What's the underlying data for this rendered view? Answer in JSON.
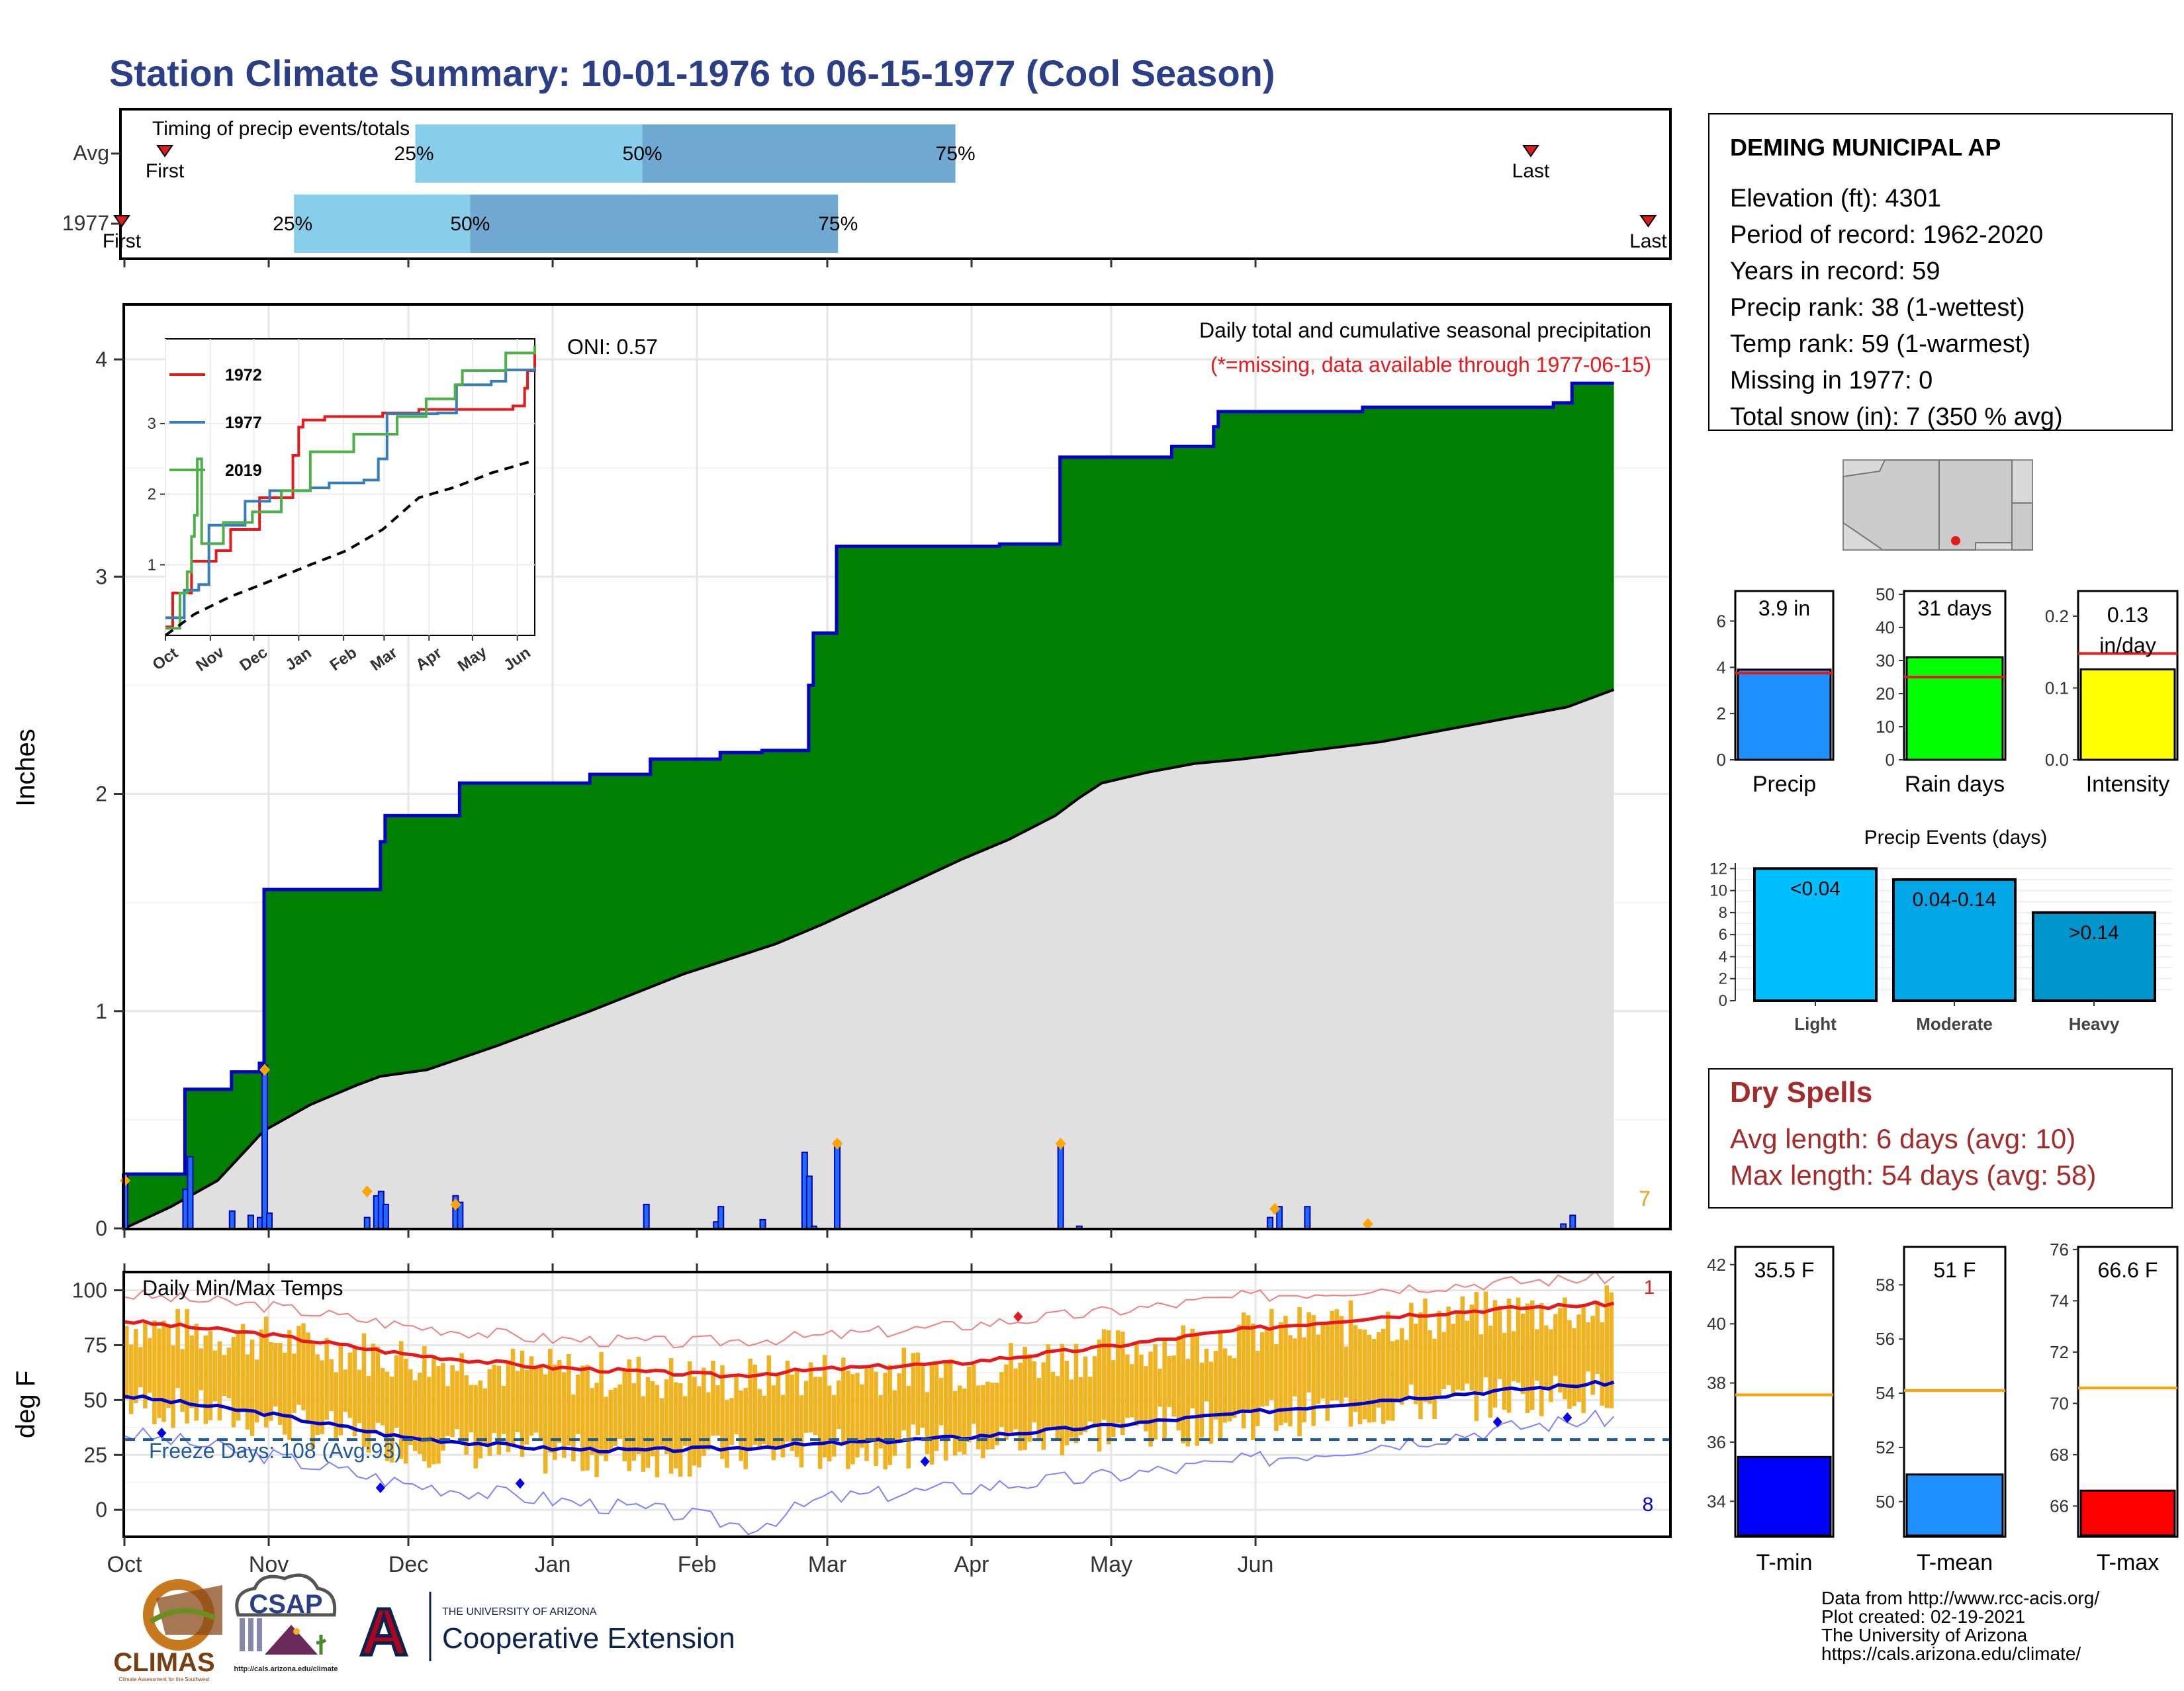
{
  "title": "Station Climate Summary: 10-01-1976 to 06-15-1977 (Cool Season)",
  "colors": {
    "title": "#2a3f88",
    "green": "#008000",
    "blue_line": "#0000cc",
    "gray_fill": "#e0e0e0",
    "light_blue": "#87ceeb",
    "steel_blue": "#6fa8d0",
    "orange": "#f0b21e",
    "red": "#e41a1c",
    "dry_red": "#a52a2a",
    "freeze_blue": "#1f5a99"
  },
  "timing_panel": {
    "title": "Timing of precip events/totals",
    "rows": [
      {
        "label": "Avg",
        "first": "First",
        "last": "Last",
        "p25": "25%",
        "p50": "50%",
        "p75": "75%",
        "first_day": 11,
        "p25_day": 75,
        "p50_day": 133,
        "p75_day": 213,
        "last_day": 360
      },
      {
        "label": "1977",
        "first": "First",
        "last": "Last",
        "p25": "25%",
        "p50": "50%",
        "p75": "75%",
        "first_day": 0,
        "p25_day": 44,
        "p50_day": 89,
        "p75_day": 183,
        "last_day": 390
      }
    ]
  },
  "main_panel": {
    "ylabel": "Inches",
    "legend_text": "Daily total and cumulative seasonal precipitation",
    "missing_note": "(*=missing, data available through 1977-06-15)",
    "oni": "ONI: 0.57",
    "snow_count": "7"
  },
  "inset": {
    "legend": [
      {
        "name": "1972",
        "color": "#e41a1c"
      },
      {
        "name": "1977",
        "color": "#377eb8"
      },
      {
        "name": "2019",
        "color": "#4daf4a"
      }
    ],
    "months": [
      "Oct",
      "Nov",
      "Dec",
      "Jan",
      "Feb",
      "Mar",
      "Apr",
      "May",
      "Jun"
    ]
  },
  "temp_panel": {
    "title": "Daily Min/Max Temps",
    "ylabel": "deg F",
    "freeze_text": "Freeze Days: 108 (Avg:93)",
    "count_max": "1",
    "count_min": "8"
  },
  "months": [
    "Oct",
    "Nov",
    "Dec",
    "Jan",
    "Feb",
    "Mar",
    "Apr",
    "May",
    "Jun"
  ],
  "station": {
    "name": "DEMING MUNICIPAL AP",
    "lines": [
      "Elevation (ft): 4301",
      "Period of record: 1962-2020",
      "Years in record: 59",
      "Precip rank: 38 (1-wettest)",
      "Temp rank: 59 (1-warmest)",
      "Missing in 1977: 0",
      "Total snow (in): 7 (350 % avg)"
    ]
  },
  "mini_charts": [
    {
      "label": "Precip",
      "value_text": "3.9 in",
      "value": 3.9,
      "avg": 3.75,
      "ymax": 7.3,
      "ticks": [
        0,
        2,
        4,
        6
      ],
      "color": "#1e90ff"
    },
    {
      "label": "Rain days",
      "value_text": "31 days",
      "value": 31,
      "avg": 25,
      "ymax": 51,
      "ticks": [
        0,
        10,
        20,
        30,
        40,
        50
      ],
      "color": "#00ff00"
    },
    {
      "label": "Intensity",
      "value_text": "0.13 in/day",
      "value": 0.126,
      "avg": 0.148,
      "ymax": 0.235,
      "ticks": [
        0.0,
        0.1,
        0.2
      ],
      "color": "#ffff00"
    }
  ],
  "events": {
    "title": "Precip Events (days)",
    "ymax": 12.5,
    "ticks": [
      0,
      2,
      4,
      6,
      8,
      10,
      12
    ],
    "bars": [
      {
        "label": "Light",
        "value_text": "<0.04",
        "value": 12,
        "color": "#00bfff"
      },
      {
        "label": "Moderate",
        "value_text": "0.04-0.14",
        "value": 11,
        "color": "#00a6e6"
      },
      {
        "label": "Heavy",
        "value_text": ">0.14",
        "value": 8,
        "color": "#0096cc"
      }
    ]
  },
  "dry_spells": {
    "title": "Dry Spells",
    "avg_line": "Avg length: 6 days (avg: 10)",
    "max_line": "Max length: 54 days (avg: 58)"
  },
  "temp_minis": [
    {
      "label": "T-min",
      "value_text": "35.5 F",
      "value": 35.5,
      "avg": 37.6,
      "ymin": 32.8,
      "ymax": 42.6,
      "ticks": [
        34,
        36,
        38,
        40,
        42
      ],
      "color": "#0000ff"
    },
    {
      "label": "T-mean",
      "value_text": "51 F",
      "value": 51,
      "avg": 54.1,
      "ymin": 48.7,
      "ymax": 59.4,
      "ticks": [
        50,
        52,
        54,
        56,
        58
      ],
      "color": "#1e90ff"
    },
    {
      "label": "T-max",
      "value_text": "66.6 F",
      "value": 66.6,
      "avg": 70.6,
      "ymin": 64.8,
      "ymax": 76.1,
      "ticks": [
        66,
        68,
        70,
        72,
        74,
        76
      ],
      "color": "#ff0000"
    }
  ],
  "footer": {
    "lines": [
      "Data from http://www.rcc-acis.org/",
      "Plot created: 02-19-2021",
      "The University of Arizona",
      "https://cals.arizona.edu/climate/"
    ],
    "logos": {
      "climas": "CLIMAS",
      "climas_sub": "Climate Assessment for the Southwest",
      "csap": "CSAP",
      "csap_url": "http://cals.arizona.edu/climate",
      "ua_small": "THE UNIVERSITY OF ARIZONA",
      "ua_big": "Cooperative Extension"
    }
  },
  "chart_data": [
    {
      "type": "area",
      "title": "Daily total and cumulative seasonal precipitation",
      "ylabel": "Inches",
      "x_unit": "days since Oct 1",
      "ylim": [
        0,
        4.25
      ],
      "months": [
        "Oct",
        "Nov",
        "Dec",
        "Jan",
        "Feb",
        "Mar",
        "Apr",
        "May",
        "Jun"
      ],
      "series": [
        {
          "name": "1977 cumulative",
          "points": [
            [
              0,
              0.25
            ],
            [
              12,
              0.25
            ],
            [
              13,
              0.64
            ],
            [
              22,
              0.64
            ],
            [
              23,
              0.72
            ],
            [
              28,
              0.72
            ],
            [
              29,
              0.76
            ],
            [
              30,
              1.56
            ],
            [
              54,
              1.56
            ],
            [
              55,
              1.78
            ],
            [
              56,
              1.9
            ],
            [
              71,
              1.9
            ],
            [
              72,
              2.05
            ],
            [
              99,
              2.05
            ],
            [
              100,
              2.09
            ],
            [
              112,
              2.09
            ],
            [
              113,
              2.16
            ],
            [
              127,
              2.16
            ],
            [
              128,
              2.19
            ],
            [
              136,
              2.19
            ],
            [
              137,
              2.2
            ],
            [
              146,
              2.2
            ],
            [
              147,
              2.5
            ],
            [
              148,
              2.74
            ],
            [
              152,
              2.74
            ],
            [
              153,
              3.14
            ],
            [
              187,
              3.14
            ],
            [
              188,
              3.15
            ],
            [
              200,
              3.15
            ],
            [
              201,
              3.55
            ],
            [
              224,
              3.55
            ],
            [
              225,
              3.6
            ],
            [
              233,
              3.6
            ],
            [
              234,
              3.69
            ],
            [
              235,
              3.76
            ],
            [
              265,
              3.76
            ],
            [
              266,
              3.78
            ],
            [
              306,
              3.78
            ],
            [
              307,
              3.8
            ],
            [
              310,
              3.8
            ],
            [
              311,
              3.89
            ],
            [
              320,
              3.89
            ]
          ]
        },
        {
          "name": "Average cumulative",
          "points": [
            [
              0,
              0
            ],
            [
              10,
              0.1
            ],
            [
              20,
              0.22
            ],
            [
              30,
              0.45
            ],
            [
              40,
              0.57
            ],
            [
              50,
              0.66
            ],
            [
              55,
              0.7
            ],
            [
              65,
              0.73
            ],
            [
              80,
              0.84
            ],
            [
              100,
              1.0
            ],
            [
              120,
              1.17
            ],
            [
              140,
              1.31
            ],
            [
              150,
              1.4
            ],
            [
              160,
              1.5
            ],
            [
              170,
              1.6
            ],
            [
              180,
              1.7
            ],
            [
              190,
              1.79
            ],
            [
              200,
              1.9
            ],
            [
              205,
              1.98
            ],
            [
              210,
              2.05
            ],
            [
              220,
              2.1
            ],
            [
              230,
              2.14
            ],
            [
              240,
              2.16
            ],
            [
              255,
              2.2
            ],
            [
              270,
              2.24
            ],
            [
              285,
              2.3
            ],
            [
              300,
              2.36
            ],
            [
              310,
              2.4
            ],
            [
              320,
              2.48
            ]
          ]
        }
      ],
      "daily_bars": [
        [
          0,
          0.25
        ],
        [
          13,
          0.18
        ],
        [
          14,
          0.33
        ],
        [
          23,
          0.08
        ],
        [
          27,
          0.06
        ],
        [
          29,
          0.05
        ],
        [
          30,
          0.75
        ],
        [
          31,
          0.07
        ],
        [
          52,
          0.05
        ],
        [
          54,
          0.15
        ],
        [
          55,
          0.17
        ],
        [
          56,
          0.11
        ],
        [
          71,
          0.15
        ],
        [
          72,
          0.12
        ],
        [
          112,
          0.11
        ],
        [
          127,
          0.03
        ],
        [
          128,
          0.1
        ],
        [
          137,
          0.04
        ],
        [
          146,
          0.35
        ],
        [
          147,
          0.24
        ],
        [
          148,
          0.01
        ],
        [
          153,
          0.4
        ],
        [
          201,
          0.39
        ],
        [
          205,
          0.01
        ],
        [
          246,
          0.05
        ],
        [
          248,
          0.1
        ],
        [
          254,
          0.1
        ],
        [
          309,
          0.02
        ],
        [
          311,
          0.06
        ]
      ],
      "snow_markers": [
        [
          0,
          0.22
        ],
        [
          30,
          0.73
        ],
        [
          52,
          0.17
        ],
        [
          71,
          0.11
        ],
        [
          153,
          0.39
        ],
        [
          201,
          0.39
        ],
        [
          247,
          0.09
        ],
        [
          267,
          0.02
        ]
      ],
      "oni": 0.57
    },
    {
      "type": "line",
      "title": "Daily Min/Max Temps",
      "ylabel": "deg F",
      "ylim": [
        -12,
        108
      ],
      "freeze_line": 32,
      "series": [
        {
          "name": "Avg max",
          "points": [
            [
              0,
              86
            ],
            [
              30,
              80
            ],
            [
              60,
              71
            ],
            [
              90,
              65
            ],
            [
              110,
              63
            ],
            [
              130,
              61
            ],
            [
              150,
              64
            ],
            [
              180,
              67
            ],
            [
              210,
              74
            ],
            [
              240,
              82
            ],
            [
              270,
              88
            ],
            [
              300,
              92
            ],
            [
              320,
              94
            ]
          ]
        },
        {
          "name": "Avg min",
          "points": [
            [
              0,
              52
            ],
            [
              30,
              44
            ],
            [
              60,
              33
            ],
            [
              90,
              28
            ],
            [
              110,
              27
            ],
            [
              130,
              28
            ],
            [
              150,
              30
            ],
            [
              180,
              33
            ],
            [
              210,
              38
            ],
            [
              240,
              44
            ],
            [
              270,
              50
            ],
            [
              300,
              55
            ],
            [
              320,
              58
            ]
          ]
        },
        {
          "name": "Record max",
          "points": [
            [
              0,
              98
            ],
            [
              30,
              93
            ],
            [
              60,
              84
            ],
            [
              90,
              78
            ],
            [
              120,
              76
            ],
            [
              150,
              79
            ],
            [
              180,
              84
            ],
            [
              210,
              90
            ],
            [
              240,
              97
            ],
            [
              270,
              101
            ],
            [
              300,
              104
            ],
            [
              320,
              106
            ]
          ]
        },
        {
          "name": "Record min",
          "points": [
            [
              0,
              35
            ],
            [
              30,
              25
            ],
            [
              60,
              12
            ],
            [
              90,
              5
            ],
            [
              120,
              -2
            ],
            [
              135,
              -8
            ],
            [
              150,
              5
            ],
            [
              180,
              10
            ],
            [
              210,
              15
            ],
            [
              240,
              22
            ],
            [
              270,
              30
            ],
            [
              300,
              38
            ],
            [
              320,
              42
            ]
          ]
        }
      ],
      "freeze_days": 108,
      "freeze_days_avg": 93
    }
  ]
}
